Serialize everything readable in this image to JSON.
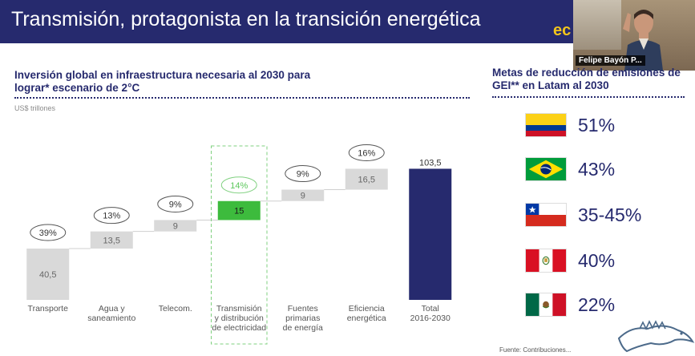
{
  "header": {
    "title": "Transmisión, protagonista en la transición energética",
    "brand_partial": "ec"
  },
  "video_tile": {
    "participant_name": "Felipe Bayón P..."
  },
  "left_panel": {
    "title": "Inversión global en infraestructura necesaria al 2030 para lograr* escenario de 2°C",
    "unit": "US$ trillones"
  },
  "chart_data": {
    "type": "bar",
    "subtype": "waterfall",
    "categories": [
      [
        "Transporte"
      ],
      [
        "Agua y",
        "saneamiento"
      ],
      [
        "Telecom."
      ],
      [
        "Transmisión",
        "y distribución",
        "de electricidad"
      ],
      [
        "Fuentes",
        "primarias",
        "de energía"
      ],
      [
        "Eficiencia",
        "energética"
      ],
      [
        "Total",
        "2016-2030"
      ]
    ],
    "values": [
      40.5,
      13.5,
      9,
      15,
      9,
      16.5,
      103.5
    ],
    "value_labels": [
      "40,5",
      "13,5",
      "9",
      "15",
      "9",
      "16,5",
      "103,5"
    ],
    "share_labels": [
      "39%",
      "13%",
      "9%",
      "14%",
      "9%",
      "16%",
      ""
    ],
    "highlight_index": 3,
    "ylim": [
      0,
      110
    ],
    "colors": {
      "step": "#d9d9d9",
      "highlight": "#3dbb3d",
      "total": "#262a6e",
      "highlight_text": "#5cc85c"
    }
  },
  "right_panel": {
    "title": "Metas de reducción de emisiones de GEI** en Latam al 2030",
    "countries": [
      {
        "flag_icon": "colombia-flag-icon",
        "value": "51%"
      },
      {
        "flag_icon": "brazil-flag-icon",
        "value": "43%"
      },
      {
        "flag_icon": "chile-flag-icon",
        "value": "35-45%"
      },
      {
        "flag_icon": "peru-flag-icon",
        "value": "40%"
      },
      {
        "flag_icon": "mexico-flag-icon",
        "value": "22%"
      }
    ]
  },
  "footer": {
    "source": "Fuente: Contribuciones..."
  }
}
